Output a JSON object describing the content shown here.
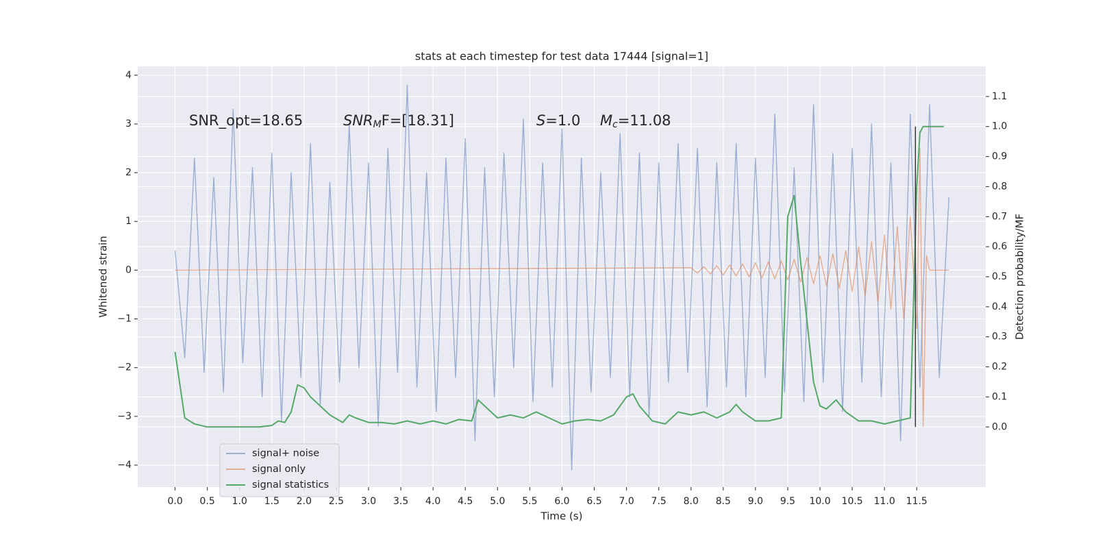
{
  "chart_data": {
    "type": "line",
    "title": "stats at each timestep for test data 17444 [signal=1]",
    "xlabel": "Time (s)",
    "ylabel": "Whitened strain",
    "y2label": "Detection probability/MF",
    "xlim": [
      -0.58,
      12.57
    ],
    "ylim": [
      -4.45,
      4.18
    ],
    "y2lim": [
      -0.2,
      1.2
    ],
    "xticks": [
      {
        "value": 0,
        "label": "0.0"
      },
      0.5,
      {
        "value": 1,
        "label": "1.0"
      },
      1.5,
      {
        "value": 2,
        "label": "2.0"
      },
      2.5,
      {
        "value": 3,
        "label": "3.0"
      },
      3.5,
      {
        "value": 4,
        "label": "4.0"
      },
      4.5,
      {
        "value": 5,
        "label": "5.0"
      },
      5.5,
      {
        "value": 6,
        "label": "6.0"
      },
      6.5,
      {
        "value": 7,
        "label": "7.0"
      },
      7.5,
      {
        "value": 8,
        "label": "8.0"
      },
      8.5,
      {
        "value": 9,
        "label": "9.0"
      },
      9.5,
      {
        "value": 10,
        "label": "10.0"
      },
      10.5,
      {
        "value": 11,
        "label": "11.0"
      },
      11.5
    ],
    "yticks": [
      {
        "value": -4,
        "label": "−4"
      },
      {
        "value": -3,
        "label": "−3"
      },
      {
        "value": -2,
        "label": "−2"
      },
      {
        "value": -1,
        "label": "−1"
      },
      0,
      1,
      2,
      3,
      4
    ],
    "y2ticks": [
      {
        "value": 0,
        "label": "0.0"
      },
      0.1,
      0.2,
      0.3,
      0.4,
      0.5,
      0.6,
      0.7,
      0.8,
      0.9,
      {
        "value": 1,
        "label": "1.0"
      },
      1.1
    ],
    "grid": true,
    "legend": "lower left",
    "annotations": [
      [
        {
          "text": "SNR_opt=18.65"
        }
      ],
      [
        {
          "text": "SNR",
          "italic": true
        },
        {
          "text": "M",
          "italic": true,
          "sub": true
        },
        {
          "text": "F=[18.31]"
        }
      ],
      [
        {
          "text": "S",
          "italic": true
        },
        {
          "text": "=1.0"
        }
      ],
      [
        {
          "text": "M",
          "italic": true
        },
        {
          "text": "c",
          "italic": true,
          "sub": true
        },
        {
          "text": "=11.08"
        }
      ]
    ],
    "vline": {
      "x": 11.48,
      "y2": [
        0,
        1
      ],
      "color": "#333333"
    },
    "series": [
      {
        "name": "signal+ noise",
        "color": "#4c72b0",
        "opacity": 0.5,
        "x": [
          0,
          0.15,
          0.3,
          0.45,
          0.6,
          0.75,
          0.9,
          1.05,
          1.2,
          1.35,
          1.5,
          1.65,
          1.8,
          1.95,
          2.1,
          2.25,
          2.4,
          2.55,
          2.7,
          2.85,
          3.0,
          3.15,
          3.3,
          3.45,
          3.6,
          3.75,
          3.9,
          4.05,
          4.2,
          4.35,
          4.5,
          4.65,
          4.8,
          4.95,
          5.1,
          5.25,
          5.4,
          5.55,
          5.7,
          5.85,
          6.0,
          6.15,
          6.3,
          6.45,
          6.6,
          6.75,
          6.9,
          7.05,
          7.2,
          7.35,
          7.5,
          7.65,
          7.8,
          7.95,
          8.1,
          8.25,
          8.4,
          8.55,
          8.7,
          8.85,
          9.0,
          9.15,
          9.3,
          9.45,
          9.6,
          9.75,
          9.9,
          10.05,
          10.2,
          10.35,
          10.5,
          10.65,
          10.8,
          10.95,
          11.1,
          11.25,
          11.4,
          11.55,
          11.7,
          11.85,
          12.0
        ],
        "values": [
          0.4,
          -1.8,
          2.3,
          -2.1,
          1.9,
          -2.5,
          3.3,
          -1.9,
          2.1,
          -2.6,
          2.4,
          -3.1,
          2.0,
          -2.2,
          2.6,
          -2.8,
          1.8,
          -2.3,
          3.0,
          -2.0,
          2.2,
          -3.2,
          2.5,
          -2.1,
          3.8,
          -2.4,
          2.0,
          -2.9,
          2.3,
          -2.2,
          2.7,
          -3.5,
          2.1,
          -2.6,
          2.4,
          -2.0,
          3.1,
          -2.7,
          2.2,
          -2.4,
          2.9,
          -4.1,
          2.3,
          -2.5,
          2.0,
          -2.2,
          2.8,
          -2.6,
          2.4,
          -3.0,
          2.2,
          -2.3,
          2.6,
          -2.1,
          2.5,
          -2.8,
          2.2,
          -2.4,
          2.6,
          -2.6,
          2.3,
          -2.2,
          3.2,
          -2.5,
          2.1,
          -2.7,
          3.4,
          -2.3,
          2.4,
          -2.9,
          2.5,
          -2.3,
          3.0,
          -2.6,
          2.2,
          -3.5,
          3.2,
          -2.4,
          3.4,
          -2.2,
          1.5
        ]
      },
      {
        "name": "signal only",
        "color": "#dd8452",
        "opacity": 0.6,
        "x": [
          0,
          8.0,
          8.1,
          8.2,
          8.3,
          8.4,
          8.5,
          8.6,
          8.7,
          8.8,
          8.9,
          9.0,
          9.1,
          9.2,
          9.3,
          9.4,
          9.5,
          9.6,
          9.7,
          9.8,
          9.9,
          10.0,
          10.1,
          10.2,
          10.3,
          10.4,
          10.5,
          10.6,
          10.7,
          10.8,
          10.9,
          11.0,
          11.1,
          11.2,
          11.3,
          11.4,
          11.5,
          11.55,
          11.6,
          11.65,
          11.7,
          12.0
        ],
        "values": [
          0,
          0.05,
          -0.06,
          0.07,
          -0.08,
          0.09,
          -0.1,
          0.11,
          -0.12,
          0.13,
          -0.14,
          0.15,
          -0.16,
          0.17,
          -0.18,
          0.19,
          -0.2,
          0.22,
          -0.24,
          0.26,
          -0.28,
          0.3,
          -0.32,
          0.34,
          -0.37,
          0.4,
          -0.44,
          0.48,
          -0.52,
          0.58,
          -0.65,
          0.72,
          -0.8,
          0.9,
          -1.0,
          1.1,
          -1.2,
          2.5,
          -3.2,
          0.3,
          0,
          0
        ]
      },
      {
        "name": "signal statistics",
        "color": "#55a868",
        "opacity": 1,
        "axis": "y2",
        "x": [
          0.0,
          0.15,
          0.3,
          0.5,
          0.7,
          0.9,
          1.1,
          1.3,
          1.5,
          1.6,
          1.7,
          1.8,
          1.9,
          2.0,
          2.1,
          2.2,
          2.4,
          2.6,
          2.7,
          2.8,
          3.0,
          3.2,
          3.4,
          3.6,
          3.8,
          4.0,
          4.2,
          4.4,
          4.6,
          4.7,
          4.8,
          5.0,
          5.2,
          5.4,
          5.6,
          5.8,
          6.0,
          6.2,
          6.4,
          6.6,
          6.8,
          7.0,
          7.1,
          7.2,
          7.4,
          7.6,
          7.8,
          8.0,
          8.2,
          8.4,
          8.6,
          8.7,
          8.8,
          9.0,
          9.2,
          9.4,
          9.5,
          9.6,
          9.7,
          9.8,
          9.9,
          10.0,
          10.1,
          10.25,
          10.4,
          10.6,
          10.8,
          11.0,
          11.2,
          11.4,
          11.5,
          11.55,
          11.6,
          11.92
        ],
        "values": [
          0.25,
          0.03,
          0.01,
          0.0,
          0.0,
          0.0,
          0.0,
          0.0,
          0.005,
          0.02,
          0.015,
          0.05,
          0.14,
          0.13,
          0.1,
          0.08,
          0.04,
          0.015,
          0.04,
          0.03,
          0.015,
          0.015,
          0.01,
          0.02,
          0.01,
          0.02,
          0.01,
          0.025,
          0.02,
          0.09,
          0.07,
          0.03,
          0.04,
          0.03,
          0.05,
          0.03,
          0.01,
          0.02,
          0.025,
          0.02,
          0.04,
          0.1,
          0.11,
          0.07,
          0.02,
          0.01,
          0.05,
          0.04,
          0.05,
          0.03,
          0.05,
          0.075,
          0.05,
          0.02,
          0.02,
          0.03,
          0.7,
          0.77,
          0.55,
          0.35,
          0.15,
          0.07,
          0.06,
          0.09,
          0.05,
          0.02,
          0.02,
          0.01,
          0.02,
          0.03,
          0.8,
          0.98,
          1.0,
          1.0
        ]
      }
    ]
  }
}
